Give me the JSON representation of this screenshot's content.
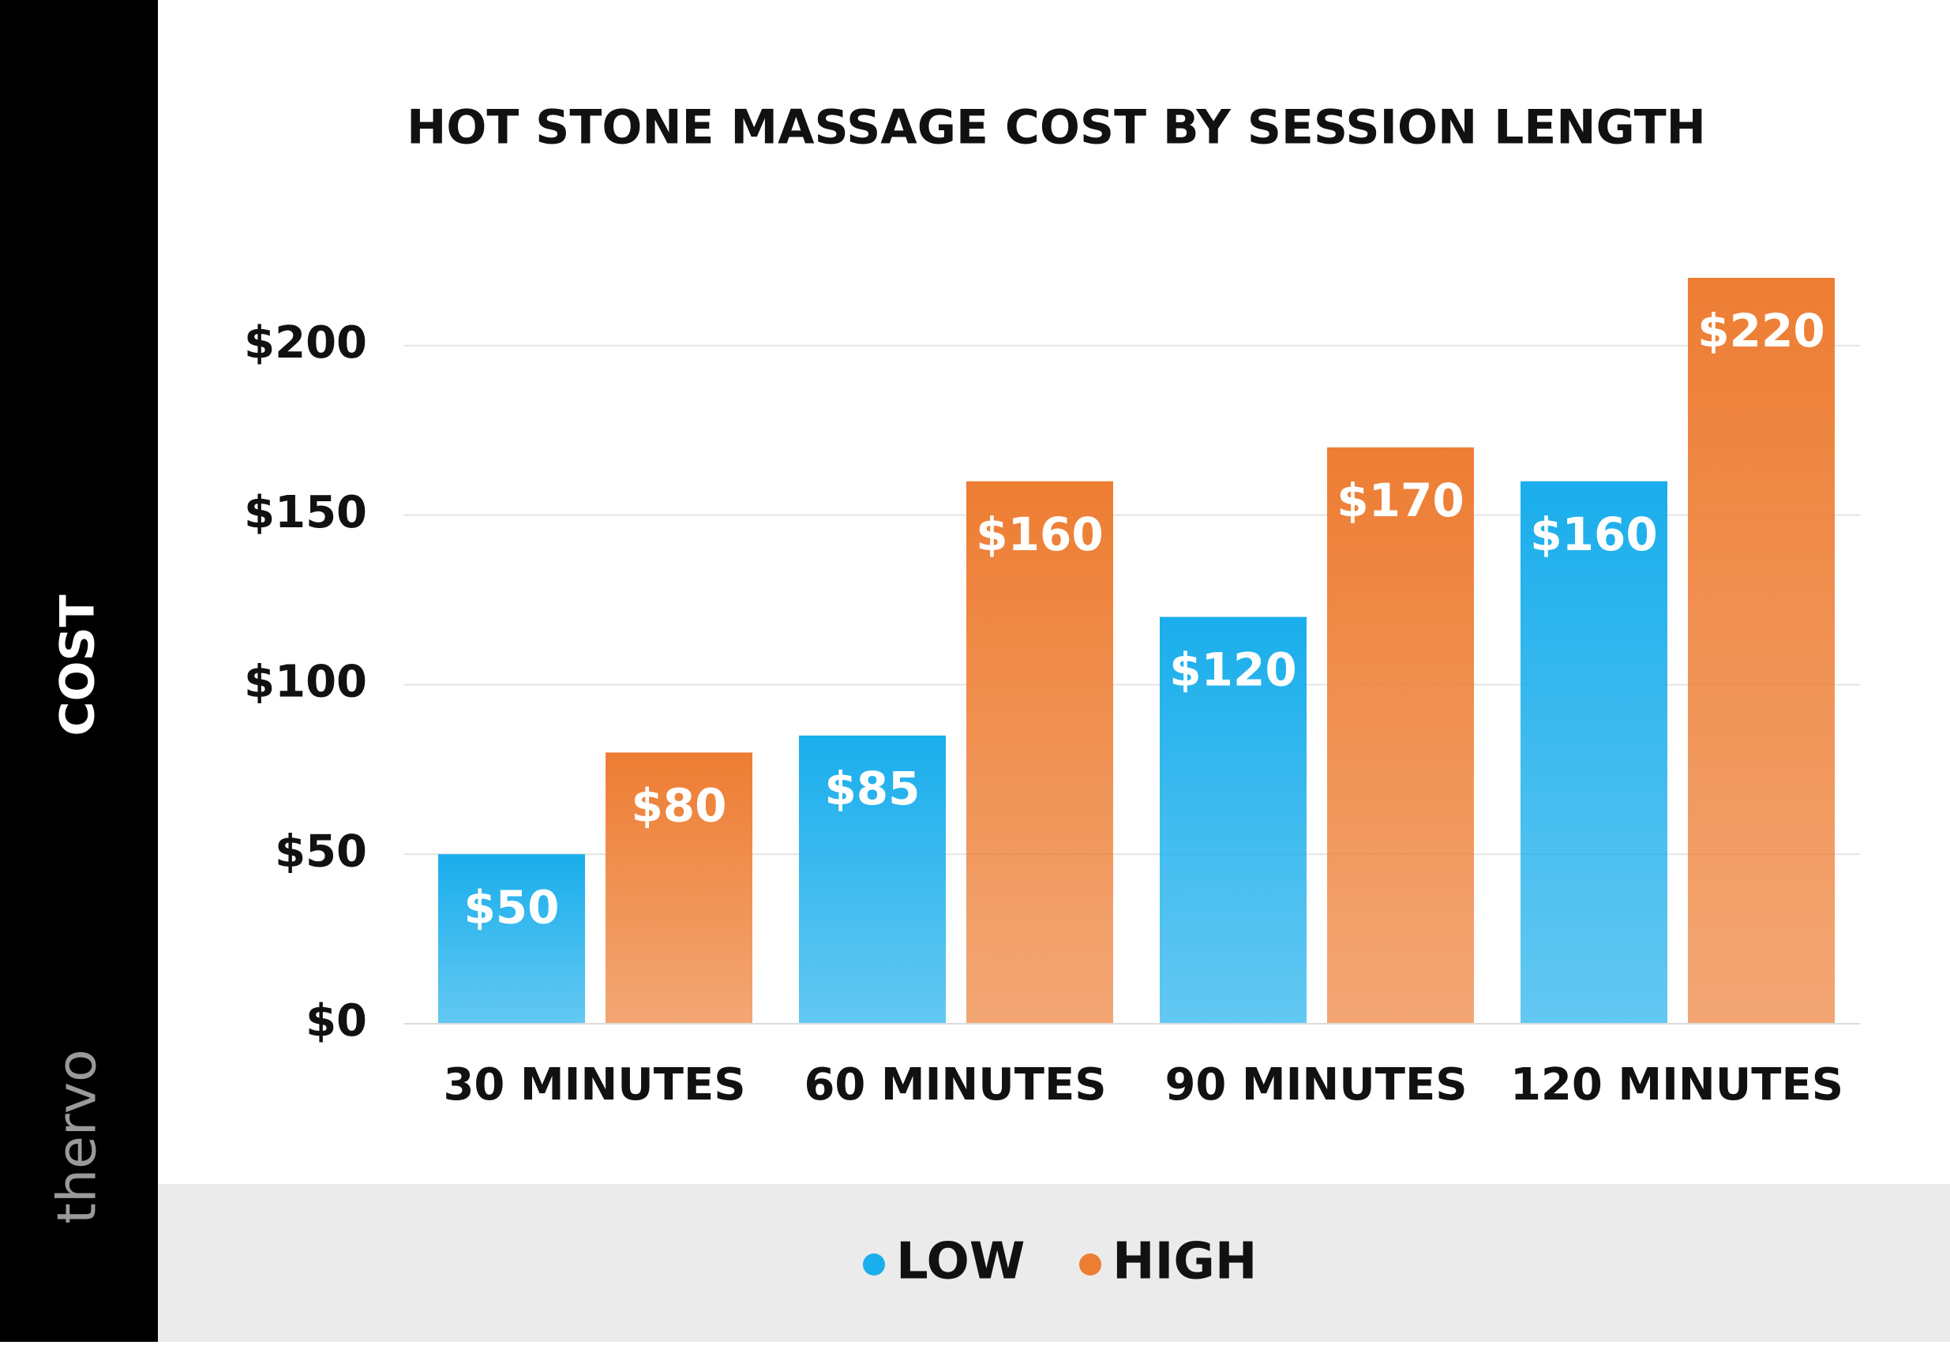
{
  "chart_data": {
    "type": "bar",
    "title": "HOT STONE MASSAGE COST BY SESSION LENGTH",
    "y_label": "COST",
    "brand": "thervo",
    "categories": [
      "30 MINUTES",
      "60 MINUTES",
      "90 MINUTES",
      "120 MINUTES"
    ],
    "series": [
      {
        "name": "LOW",
        "color": "#1aaeec",
        "values": [
          50,
          85,
          120,
          160
        ],
        "value_labels": [
          "$50",
          "$85",
          "$120",
          "$160"
        ]
      },
      {
        "name": "HIGH",
        "color": "#ed7d33",
        "values": [
          80,
          160,
          170,
          220
        ],
        "value_labels": [
          "$80",
          "$160",
          "$170",
          "$220"
        ]
      }
    ],
    "ylim": [
      0,
      220
    ],
    "yticks": [
      {
        "value": 0,
        "label": "$0"
      },
      {
        "value": 50,
        "label": "$50"
      },
      {
        "value": 100,
        "label": "$100"
      },
      {
        "value": 150,
        "label": "$150"
      },
      {
        "value": 200,
        "label": "$200"
      }
    ],
    "grid": true
  }
}
